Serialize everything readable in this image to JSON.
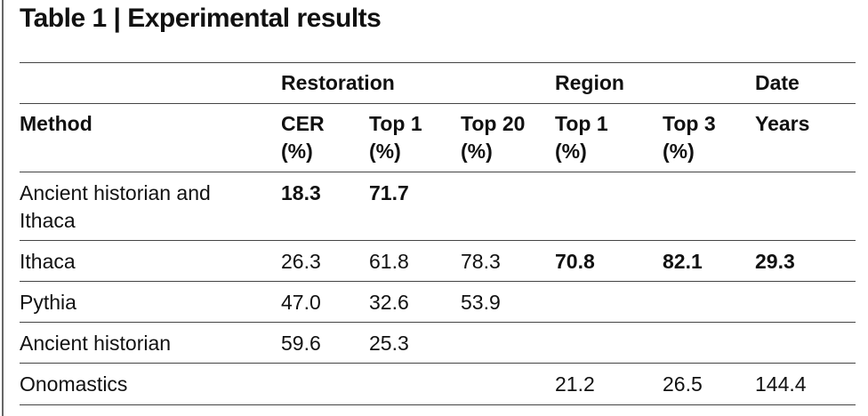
{
  "table": {
    "title": "Table 1 | Experimental results",
    "groups": [
      {
        "label": "Restoration",
        "column": 1
      },
      {
        "label": "Region",
        "column": 4
      },
      {
        "label": "Date",
        "column": 6
      }
    ],
    "columns": [
      [
        "Method"
      ],
      [
        "CER",
        "(%)"
      ],
      [
        "Top 1",
        "(%)"
      ],
      [
        "Top 20",
        "(%)"
      ],
      [
        "Top 1",
        "(%)"
      ],
      [
        "Top 3",
        "(%)"
      ],
      [
        "Years"
      ]
    ],
    "rows": [
      {
        "method": "Ancient historian and Ithaca",
        "values": [
          18.3,
          71.7,
          null,
          null,
          null,
          null
        ],
        "bold": [
          0,
          1
        ]
      },
      {
        "method": "Ithaca",
        "values": [
          26.3,
          61.8,
          78.3,
          70.8,
          82.1,
          29.3
        ],
        "bold": [
          3,
          4,
          5
        ]
      },
      {
        "method": "Pythia",
        "values": [
          47.0,
          32.6,
          53.9,
          null,
          null,
          null
        ],
        "bold": []
      },
      {
        "method": "Ancient historian",
        "values": [
          59.6,
          25.3,
          null,
          null,
          null,
          null
        ],
        "bold": []
      },
      {
        "method": "Onomastics",
        "values": [
          null,
          null,
          null,
          21.2,
          26.5,
          144.4
        ],
        "bold": []
      }
    ]
  }
}
